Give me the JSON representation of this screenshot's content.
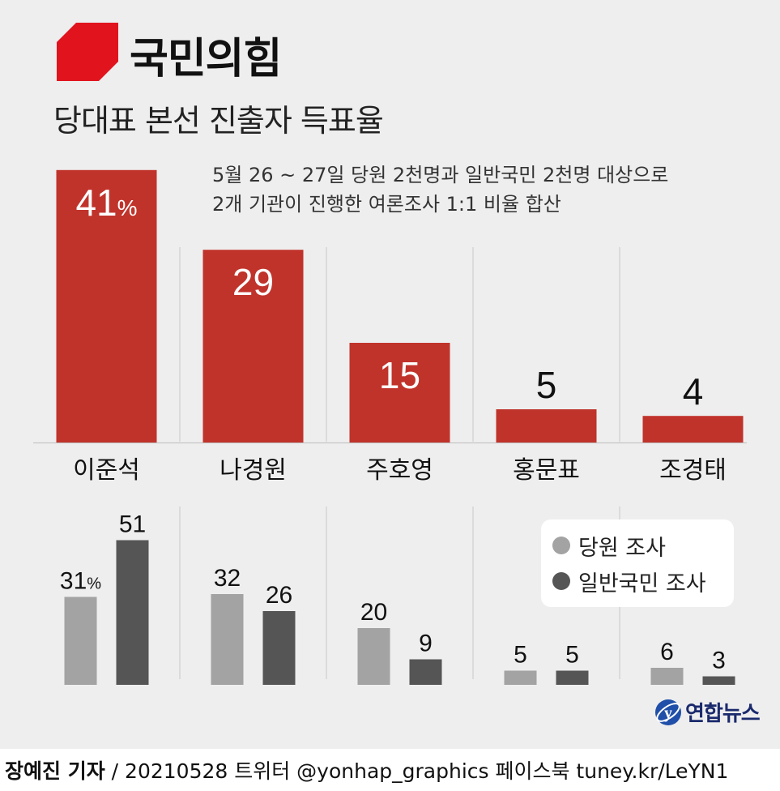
{
  "header": {
    "party_name": "국민의힘",
    "title": "당대표 본선 진출자 득표율",
    "note": "5월 26 ~ 27일 당원 2천명과 일반국민 2천명 대상으로\n2개 기관이 진행한 여론조사 1:1 비율 합산"
  },
  "colors": {
    "main_bar": "#c0332b",
    "member_bar": "#a3a3a3",
    "public_bar": "#555555",
    "logo_red": "#e1141e",
    "panel_bg": "#eeeeee"
  },
  "chart_data": [
    {
      "type": "bar",
      "categories": [
        "이준석",
        "나경원",
        "주호영",
        "홍문표",
        "조경태"
      ],
      "values": [
        41,
        29,
        15,
        5,
        4
      ],
      "value_labels": [
        "41%",
        "29",
        "15",
        "5",
        "4"
      ],
      "ylim": [
        0,
        45
      ]
    },
    {
      "type": "bar",
      "categories": [
        "이준석",
        "나경원",
        "주호영",
        "홍문표",
        "조경태"
      ],
      "series": [
        {
          "name": "당원 조사",
          "values": [
            31,
            32,
            20,
            5,
            6
          ],
          "value_labels": [
            "31%",
            "32",
            "20",
            "5",
            "6"
          ]
        },
        {
          "name": "일반국민 조사",
          "values": [
            51,
            26,
            9,
            5,
            3
          ],
          "value_labels": [
            "51",
            "26",
            "9",
            "5",
            "3"
          ]
        }
      ],
      "legend": "right",
      "ylim": [
        0,
        55
      ]
    }
  ],
  "legend": {
    "member_label": "당원 조사",
    "public_label": "일반국민 조사"
  },
  "footer": {
    "agency": "연합뉴스",
    "reporter": "장예진 기자",
    "info": " / 20210528 트위터 @yonhap_graphics  페이스북 tuney.kr/LeYN1"
  }
}
